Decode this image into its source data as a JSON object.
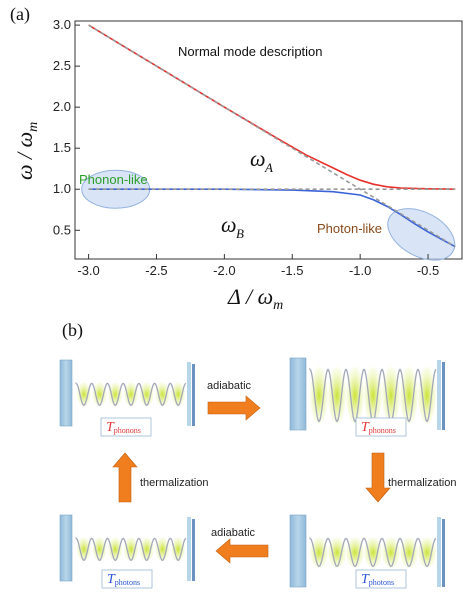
{
  "panel_a": {
    "label": "(a)",
    "title": "Normal mode description",
    "annotations": {
      "phonon_like": "Phonon-like",
      "photon_like": "Photon-like",
      "omega_a": "ω",
      "omega_a_sub": "A",
      "omega_b": "ω",
      "omega_b_sub": "B"
    }
  },
  "panel_b": {
    "label": "(b)",
    "steps": {
      "adiabatic_top": "adiabatic",
      "thermalization_right": "thermalization",
      "adiabatic_bottom": "adiabatic",
      "thermalization_left": "thermalization"
    },
    "temperatures": {
      "top_left": {
        "symbol": "T",
        "sub": "phonons"
      },
      "top_right": {
        "symbol": "T",
        "sub": "phonons"
      },
      "bottom_right": {
        "symbol": "T",
        "sub": "photons"
      },
      "bottom_left": {
        "symbol": "T",
        "sub": "photons"
      }
    }
  },
  "chart_data": {
    "type": "line",
    "title": "Normal mode description",
    "xlabel": "Δ / ω",
    "xlabel_sub": "m",
    "ylabel": "ω / ω",
    "ylabel_sub": "m",
    "xlim": [
      -3.1,
      -0.25
    ],
    "ylim": [
      0.15,
      3.05
    ],
    "xticks": [
      -3.0,
      -2.5,
      -2.0,
      -1.5,
      -1.0,
      -0.5
    ],
    "xtick_labels": [
      "-3.0",
      "-2.5",
      "-2.0",
      "-1.5",
      "-1.0",
      "-0.5"
    ],
    "yticks": [
      0.5,
      1.0,
      1.5,
      2.0,
      2.5,
      3.0
    ],
    "ytick_labels": [
      "0.5",
      "1.0",
      "1.5",
      "2.0",
      "2.5",
      "3.0"
    ],
    "grid": false,
    "series": [
      {
        "name": "ω_A",
        "color": "#e8302c",
        "x": [
          -3.0,
          -2.5,
          -2.0,
          -1.6,
          -1.4,
          -1.2,
          -1.1,
          -1.0,
          -0.9,
          -0.8,
          -0.7,
          -0.5,
          -0.3
        ],
        "y": [
          3.0,
          2.5,
          2.0,
          1.61,
          1.42,
          1.26,
          1.18,
          1.11,
          1.06,
          1.03,
          1.015,
          1.005,
          1.0
        ]
      },
      {
        "name": "ω_B",
        "color": "#3b63d8",
        "x": [
          -3.0,
          -2.0,
          -1.5,
          -1.2,
          -1.0,
          -0.9,
          -0.8,
          -0.7,
          -0.6,
          -0.5,
          -0.4,
          -0.3
        ],
        "y": [
          1.0,
          1.0,
          0.99,
          0.97,
          0.93,
          0.87,
          0.79,
          0.69,
          0.58,
          0.48,
          0.39,
          0.3
        ]
      },
      {
        "name": "",
        "color": "#999999",
        "dashed": true,
        "x": [
          -3.0,
          -1.0,
          -0.3
        ],
        "y": [
          3.0,
          1.0,
          0.3
        ]
      },
      {
        "name": "",
        "color": "#999999",
        "dashed": true,
        "x": [
          -3.0,
          -0.3
        ],
        "y": [
          1.0,
          1.0
        ]
      }
    ]
  },
  "colors": {
    "mirror": "#9cc4df",
    "mirror_dark": "#6b93c2",
    "arrow": "#f07d1e",
    "lobe": "#d3e840",
    "ellipse_fill": "#c9daf2",
    "ellipse_stroke": "#93b2df",
    "wave": "#a2a8b8",
    "phonon_text": "#2a9d2a",
    "photon_text": "#8a4a1a",
    "temp_red": "#e03a3a",
    "temp_blue": "#2a56d6"
  }
}
